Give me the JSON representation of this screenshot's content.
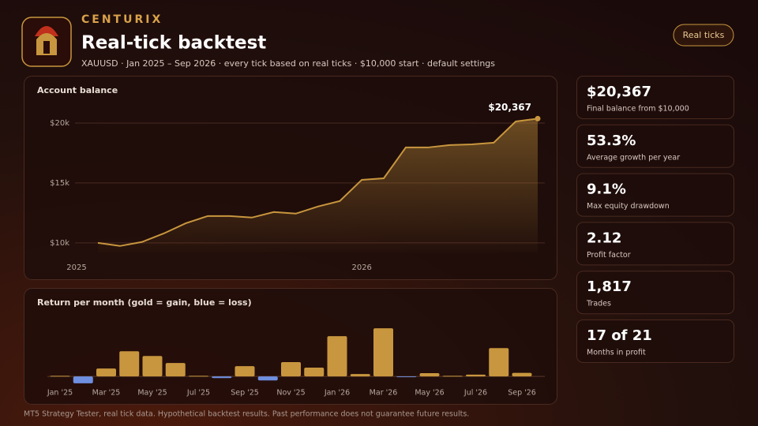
{
  "header": {
    "brand": "CENTURIX",
    "title": "Real-tick backtest",
    "subtitle": "XAUUSD · Jan 2025 – Sep 2026 · every tick based on real ticks · $10,000 start · default settings",
    "badge": "Real ticks"
  },
  "chart_data": [
    {
      "type": "line",
      "title": "Account balance",
      "color": "#c8963e",
      "categories": [
        "2025",
        null,
        null,
        null,
        null,
        null,
        null,
        null,
        null,
        null,
        null,
        null,
        "2026",
        null,
        null,
        null,
        null,
        null,
        null,
        null,
        null
      ],
      "values": [
        10000,
        9740,
        10070,
        10790,
        11640,
        12240,
        12240,
        12110,
        12570,
        12440,
        13030,
        13490,
        15260,
        15390,
        17960,
        17960,
        18160,
        18220,
        18360,
        20130,
        20367
      ],
      "end_label": "$20,367",
      "ylim": [
        9200,
        21050
      ],
      "yticks": [
        {
          "value": 10000,
          "label": "$10k"
        },
        {
          "value": 15000,
          "label": "$15k"
        },
        {
          "value": 20000,
          "label": "$20k"
        }
      ],
      "grid": true
    },
    {
      "type": "bar",
      "title": "Return per month (gold = gain, blue = loss)",
      "gain_color": "#c8963e",
      "loss_color": "#6f8fe0",
      "categories": [
        "Jan '25",
        null,
        "Mar '25",
        null,
        "May '25",
        null,
        "Jul '25",
        null,
        "Sep '25",
        null,
        "Nov '25",
        null,
        "Jan '26",
        null,
        "Mar '26",
        null,
        "May '26",
        null,
        "Jul '26",
        null,
        "Sep '26"
      ],
      "values": [
        0.2,
        -2.4,
        2.7,
        8.6,
        7.0,
        4.6,
        0.2,
        -0.6,
        3.5,
        -1.4,
        4.9,
        3.0,
        13.8,
        0.8,
        16.5,
        -0.2,
        1.1,
        0.2,
        0.6,
        9.7,
        1.2
      ],
      "ylim": [
        -3.5,
        19.5
      ]
    }
  ],
  "stats": [
    {
      "value": "$20,367",
      "label": "Final balance from $10,000"
    },
    {
      "value": "53.3%",
      "label": "Average growth per year"
    },
    {
      "value": "9.1%",
      "label": "Max equity drawdown"
    },
    {
      "value": "2.12",
      "label": "Profit factor"
    },
    {
      "value": "1,817",
      "label": "Trades"
    },
    {
      "value": "17 of 21",
      "label": "Months in profit"
    }
  ],
  "footer": "MT5 Strategy Tester, real tick data. Hypothetical backtest results. Past performance does not guarantee future results."
}
